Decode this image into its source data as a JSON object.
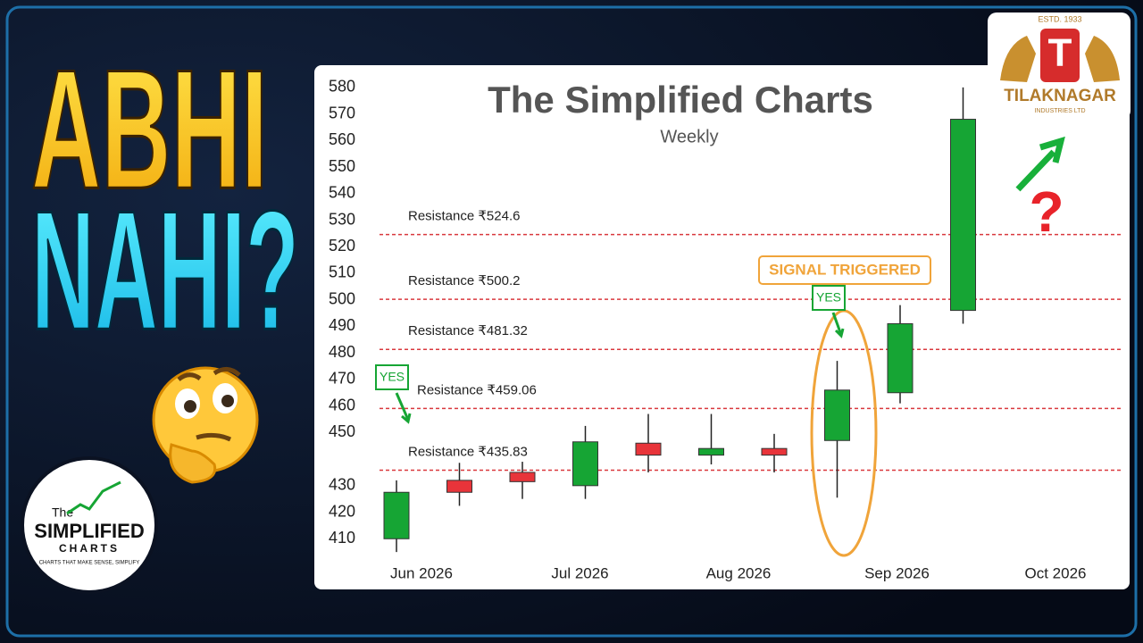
{
  "headline": {
    "line1": "ABHI",
    "line2": "NAHI?"
  },
  "chart_data": {
    "type": "candlestick",
    "title": "The Simplified Charts",
    "subtitle": "Weekly",
    "categories": [
      null,
      null,
      null,
      null,
      null,
      null,
      null,
      null,
      null,
      null
    ],
    "open": [
      410,
      432,
      435,
      430,
      446,
      441.5,
      444,
      447,
      465,
      496
    ],
    "high": [
      432,
      438.6,
      439,
      452.5,
      457,
      457,
      449.5,
      477,
      498,
      580
    ],
    "low": [
      405,
      422.4,
      425,
      425,
      435,
      438,
      435,
      425.5,
      461,
      491
    ],
    "close": [
      427.5,
      427.5,
      431.5,
      446.5,
      441.5,
      444,
      441.5,
      466,
      491,
      568
    ],
    "up_color": "#16a534",
    "down_color": "#e8343a",
    "ylim": [
      400,
      585
    ],
    "yticks": [
      580,
      570,
      560,
      550,
      540,
      530,
      520,
      510,
      500,
      490,
      480,
      470,
      460,
      450,
      430,
      420,
      410
    ],
    "x_labels": [
      "Jun 2026",
      "Jul 2026",
      "Aug 2026",
      "Sep 2026",
      "Oct 2026"
    ],
    "resistance": [
      {
        "value": 524.6,
        "label": "Resistance ₹524.6"
      },
      {
        "value": 500.2,
        "label": "Resistance ₹500.2"
      },
      {
        "value": 481.32,
        "label": "Resistance ₹481.32"
      },
      {
        "value": 459.06,
        "label": "Resistance ₹459.06"
      },
      {
        "value": 435.83,
        "label": "Resistance ₹435.83"
      }
    ],
    "resistance_color": "#d9393e",
    "annotations": {
      "signal": "SIGNAL TRIGGERED",
      "yes": [
        "YES",
        "YES"
      ]
    }
  },
  "logo": {
    "the": "The",
    "name": "SIMPLIFIED",
    "sub": "CHARTS",
    "tagline": "CHARTS THAT MAKE SENSE, SIMPLIFY"
  },
  "brand": {
    "estd": "ESTD. 1933",
    "name": "TILAKNAGAR",
    "sub": "INDUSTRIES LTD"
  }
}
